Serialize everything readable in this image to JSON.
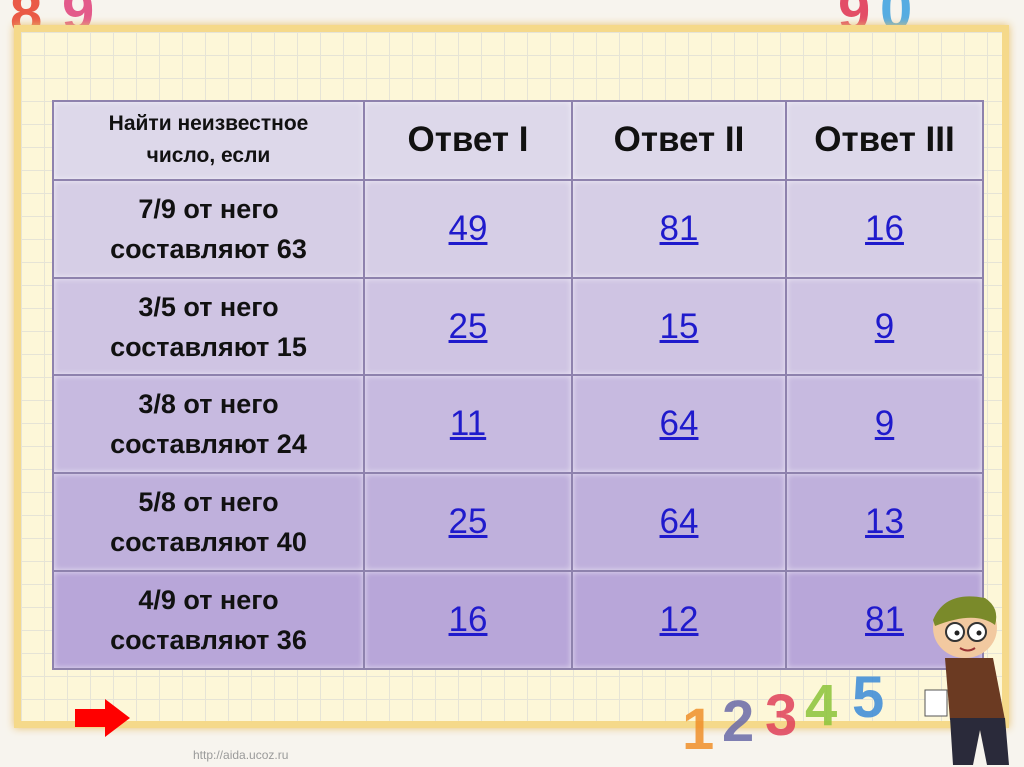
{
  "header": {
    "question_label": "Найти неизвестное число, если",
    "answers": [
      "Ответ I",
      "Ответ II",
      "Ответ III"
    ]
  },
  "rows": [
    {
      "question": "7/9  от него составляют 63",
      "answers": [
        "49",
        "81",
        "16"
      ]
    },
    {
      "question": "3/5 от него составляют 15",
      "answers": [
        "25",
        "15",
        "9"
      ]
    },
    {
      "question": "3/8 от него составляют 24",
      "answers": [
        "11",
        "64",
        "9"
      ]
    },
    {
      "question": "5/8 от него составляют 40",
      "answers": [
        "25",
        "64",
        "13"
      ]
    },
    {
      "question": "4/9 от него составляют 36",
      "answers": [
        "16",
        "12",
        "81"
      ]
    }
  ],
  "navigation": {
    "next_icon": "red-arrow-right",
    "color": "#ff0000"
  },
  "watermark": "http://aida.ucoz.ru",
  "colors": {
    "link": "#1f1acc",
    "table_border": "#8e82ad"
  }
}
